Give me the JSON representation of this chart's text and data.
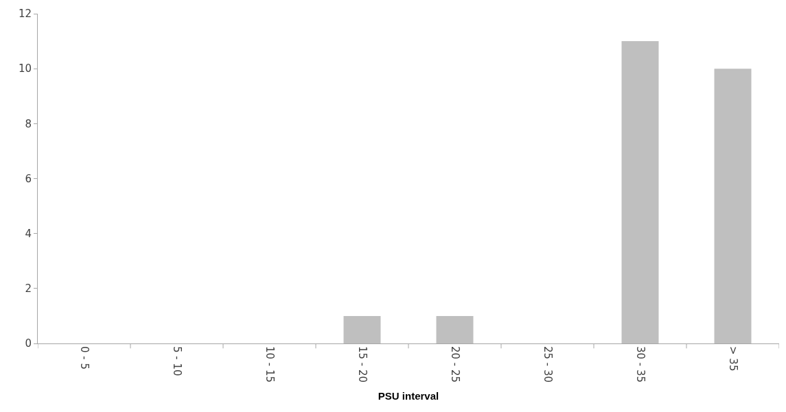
{
  "chart_data": {
    "type": "bar",
    "xlabel": "PSU interval",
    "categories": [
      "0 - 5",
      "5 - 10",
      "10 - 15",
      "15 - 20",
      "20 - 25",
      "25 - 30",
      "30 - 35",
      "> 35"
    ],
    "values": [
      0,
      0,
      0,
      1,
      1,
      0,
      11,
      10
    ],
    "color": "#bfbfbf",
    "ylim": [
      0,
      12
    ],
    "yticks": [
      0,
      2,
      4,
      6,
      8,
      10,
      12
    ]
  }
}
